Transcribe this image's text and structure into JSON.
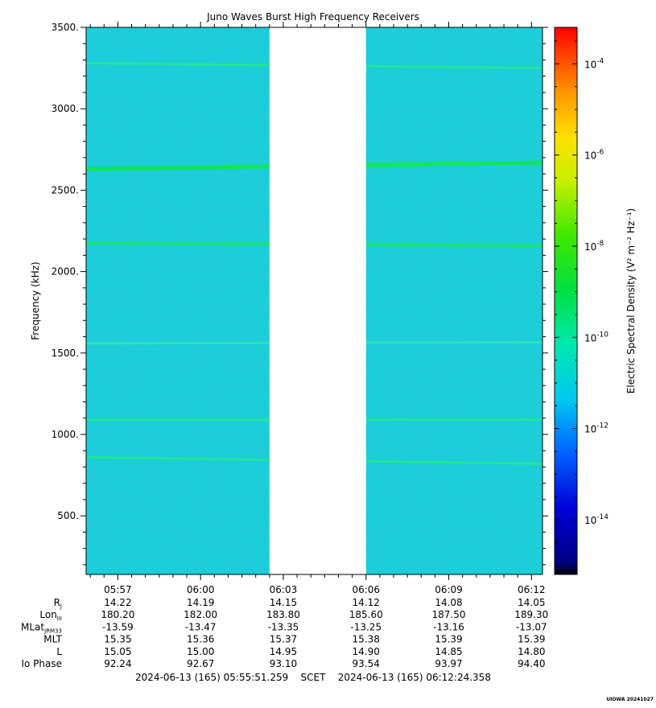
{
  "chart_data": {
    "type": "heatmap",
    "title": "Juno Waves Burst High Frequency Receivers",
    "ylabel": "Frequency (kHz)",
    "ylim": [
      140,
      3500
    ],
    "y_ticks": [
      500,
      1000,
      1500,
      2000,
      2500,
      3000,
      3500
    ],
    "y_tick_labels": [
      "500.",
      "1000.",
      "1500.",
      "2000.",
      "2500.",
      "3000.",
      "3500."
    ],
    "x_start": "05:55:51",
    "x_end": "06:12:24",
    "x_tick_labels": [
      "05:57",
      "06:00",
      "06:03",
      "06:06",
      "06:09",
      "06:12"
    ],
    "x_tick_minutes": [
      1.15,
      4.15,
      7.15,
      10.15,
      13.15,
      16.15
    ],
    "x_span_minutes": 16.55,
    "data_gap_minutes": [
      6.65,
      10.15
    ],
    "background_level_log10": -11.6,
    "emission_lines": [
      {
        "start_khz": 3280,
        "end_khz": 3250,
        "log10_level": -10.4
      },
      {
        "start_khz": 2630,
        "end_khz": 2670,
        "log10_level": -9.3
      },
      {
        "start_khz": 2175,
        "end_khz": 2160,
        "log10_level": -10.0
      },
      {
        "start_khz": 1560,
        "end_khz": 1565,
        "log10_level": -10.8
      },
      {
        "start_khz": 1090,
        "end_khz": 1090,
        "log10_level": -10.6
      },
      {
        "start_khz": 860,
        "end_khz": 820,
        "log10_level": -10.6
      }
    ],
    "colorbar": {
      "label": "Electric Spectral Density (V² m⁻² Hz⁻¹)",
      "range_log10": [
        -15.2,
        -3.2
      ],
      "ticks": [
        {
          "exp": -4,
          "base": "10",
          "power": "-4"
        },
        {
          "exp": -6,
          "base": "10",
          "power": "-6"
        },
        {
          "exp": -8,
          "base": "10",
          "power": "-8"
        },
        {
          "exp": -10,
          "base": "10",
          "power": "-10"
        },
        {
          "exp": -12,
          "base": "10",
          "power": "-12"
        },
        {
          "exp": -14,
          "base": "10",
          "power": "-14"
        }
      ]
    },
    "ephemeris": {
      "rows": [
        {
          "label": "R",
          "sub": "J",
          "values": [
            "14.22",
            "14.19",
            "14.15",
            "14.12",
            "14.08",
            "14.05"
          ]
        },
        {
          "label": "Lon",
          "sub": "III",
          "values": [
            "180.20",
            "182.00",
            "183.80",
            "185.60",
            "187.50",
            "189.30"
          ]
        },
        {
          "label": "MLat",
          "sub": "JRM33",
          "values": [
            "-13.59",
            "-13.47",
            "-13.35",
            "-13.25",
            "-13.16",
            "-13.07"
          ]
        },
        {
          "label": "MLT",
          "sub": "",
          "values": [
            "15.35",
            "15.36",
            "15.37",
            "15.38",
            "15.39",
            "15.39"
          ]
        },
        {
          "label": "L",
          "sub": "",
          "values": [
            "15.05",
            "15.00",
            "14.95",
            "14.90",
            "14.85",
            "14.80"
          ]
        },
        {
          "label": "Io Phase",
          "sub": "",
          "values": [
            "92.24",
            "92.67",
            "93.10",
            "93.54",
            "93.97",
            "94.40"
          ]
        }
      ]
    },
    "time_range_text": "2024-06-13 (165) 05:55:51.259    SCET    2024-06-13 (165) 06:12:24.358",
    "credit": "UIOWA 20241027"
  },
  "colors": {
    "background_cyan": "#19cfd7",
    "speckle_blue": "#2f7ff0",
    "gap": "#ffffff"
  }
}
